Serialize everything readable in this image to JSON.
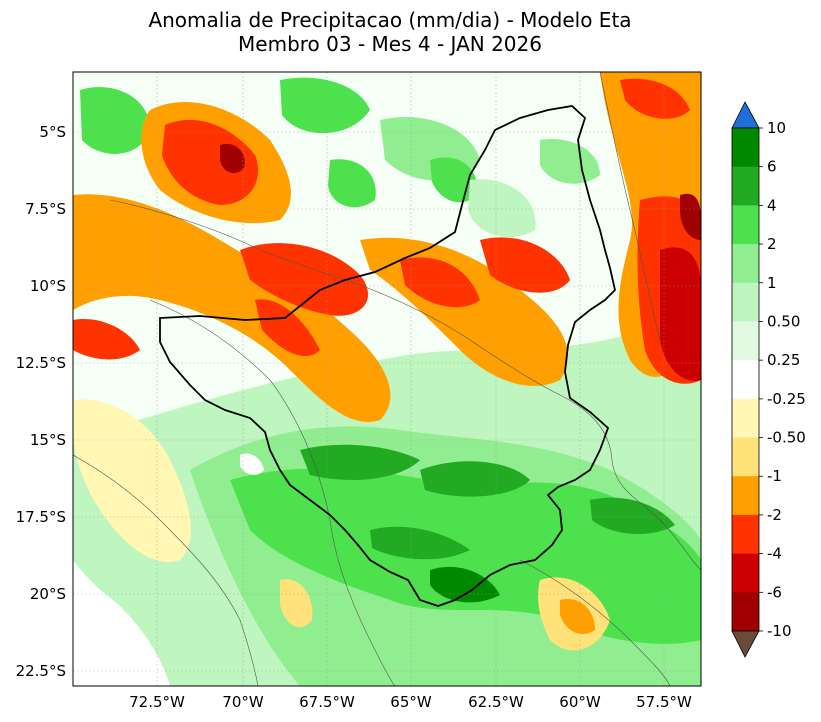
{
  "title_line1": "Anomalia de Precipitacao (mm/dia) - Modelo Eta",
  "title_line2": "Membro 03 - Mes 4 - JAN 2026",
  "lon_labels": [
    "72.5°W",
    "70°W",
    "67.5°W",
    "65°W",
    "62.5°W",
    "60°W",
    "57.5°W"
  ],
  "lat_labels": [
    "5°S",
    "7.5°S",
    "10°S",
    "12.5°S",
    "15°S",
    "17.5°S",
    "20°S",
    "22.5°S"
  ],
  "colorbar": {
    "labels": [
      "10",
      "6",
      "4",
      "2",
      "1",
      "0.50",
      "0.25",
      "-0.25",
      "-0.50",
      "-1",
      "-2",
      "-4",
      "-6",
      "-10"
    ],
    "colors": [
      "#008800",
      "#22aa22",
      "#4de24d",
      "#90ee90",
      "#bff5bf",
      "#e2fae2",
      "#ffffff",
      "#fff7b3",
      "#ffe27a",
      "#ffa000",
      "#ff3300",
      "#cc0000",
      "#a00000"
    ],
    "extend_max_color": "#1f6fd6",
    "extend_min_color": "#6b4a3a"
  }
}
